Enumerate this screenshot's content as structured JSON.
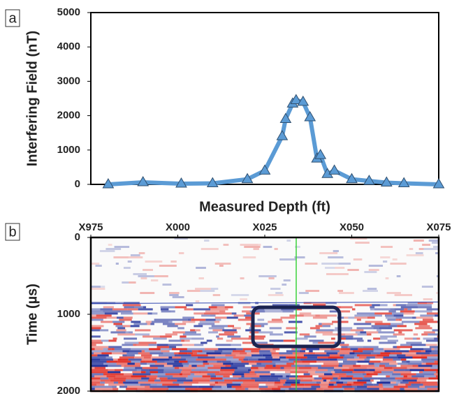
{
  "chart_data": [
    {
      "type": "line",
      "panel_label": "a",
      "ylabel": "Interfering Field (nT)",
      "xlabel": "Measured Depth (ft)",
      "x": [
        980,
        990,
        1001,
        1010,
        1020,
        1025,
        1030,
        1031,
        1033,
        1034,
        1036,
        1038,
        1040,
        1041,
        1043,
        1045,
        1050,
        1055,
        1060,
        1065,
        1075
      ],
      "series": [
        {
          "color": "#5b9bd5",
          "values": [
            0,
            60,
            20,
            30,
            150,
            400,
            1400,
            1900,
            2350,
            2450,
            2400,
            1950,
            750,
            850,
            300,
            400,
            150,
            100,
            50,
            30,
            0
          ]
        }
      ],
      "xlim": [
        975,
        1075
      ],
      "ylim": [
        0,
        5000
      ],
      "yticks": [
        0,
        1000,
        2000,
        3000,
        4000,
        5000
      ]
    },
    {
      "type": "image",
      "panel_label": "b",
      "ylabel": "Time (µs)",
      "xlim": [
        975,
        1075
      ],
      "xticks": [
        {
          "value": 975,
          "label": "X975"
        },
        {
          "value": 1000,
          "label": "X000"
        },
        {
          "value": 1025,
          "label": "X025"
        },
        {
          "value": 1050,
          "label": "X050"
        },
        {
          "value": 1075,
          "label": "X075"
        }
      ],
      "ylim": [
        0,
        2000
      ],
      "y_inverted": true,
      "yticks": [
        0,
        1000,
        2000
      ]
    }
  ]
}
